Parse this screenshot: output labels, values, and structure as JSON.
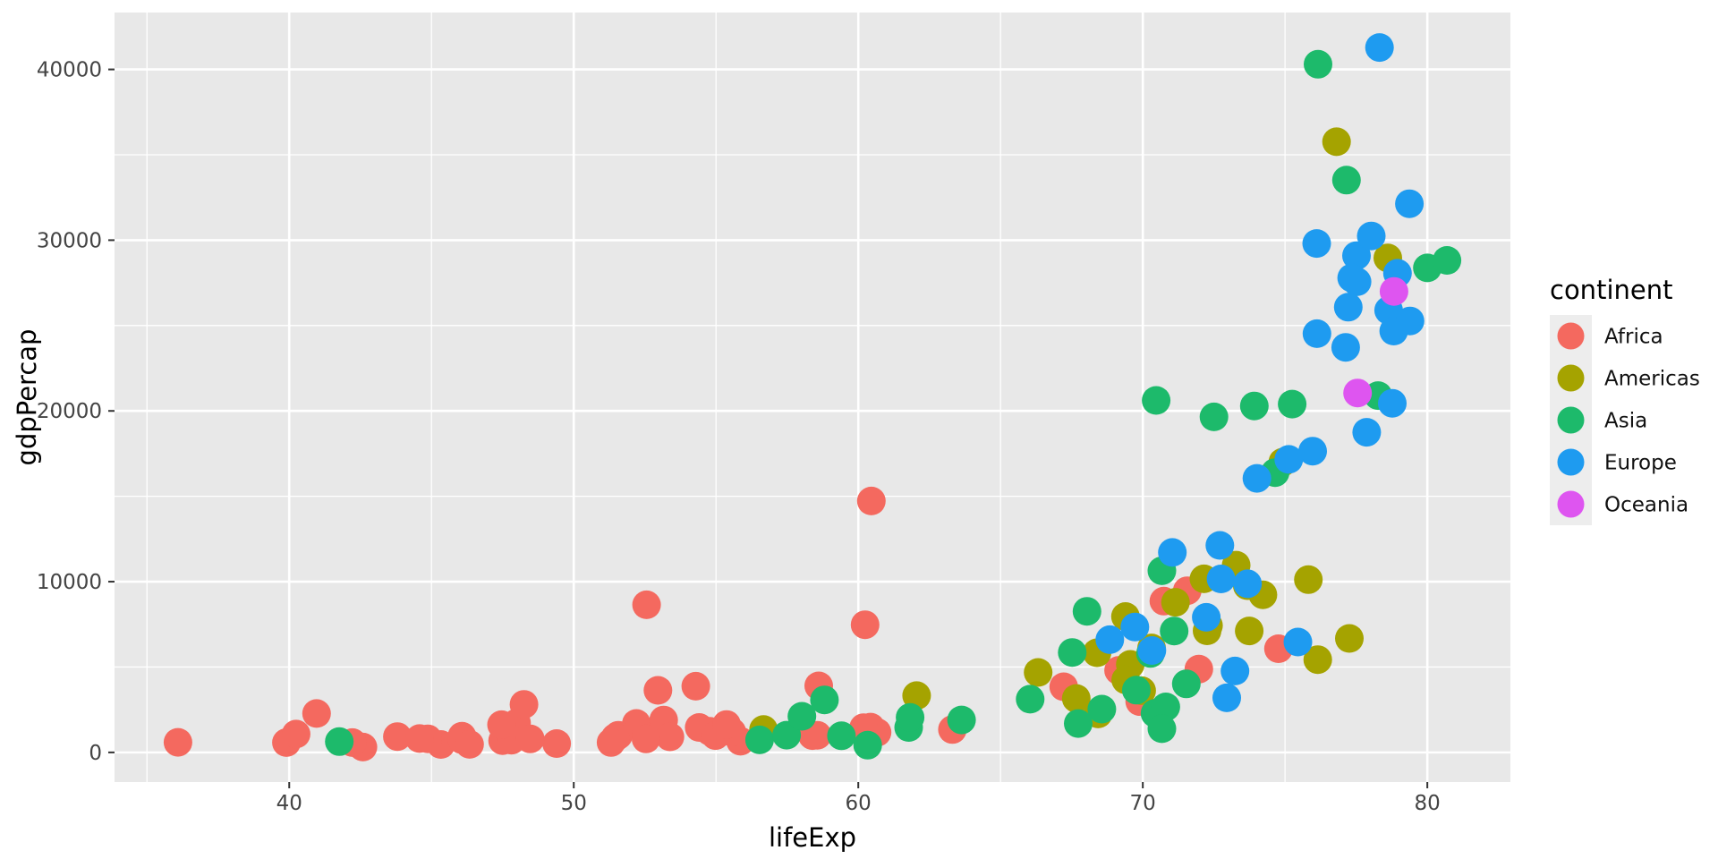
{
  "style": {
    "page_bg": "#FFFFFF",
    "panel_bg": "#E8E8E8",
    "grid_color": "#FFFFFF",
    "tick_mark_color": "#333333",
    "tick_label_color": "#444444",
    "axis_title_color": "#000000",
    "legend_key_bg": "#EDEDED",
    "legend_text_color": "#111111"
  },
  "chart_data": {
    "type": "scatter",
    "title": "",
    "xlabel": "lifeExp",
    "ylabel": "gdpPercap",
    "x_ticks": [
      40,
      50,
      60,
      70,
      80
    ],
    "x_minor_ticks": [
      35,
      45,
      55,
      65,
      75
    ],
    "y_ticks": [
      0,
      10000,
      20000,
      30000,
      40000
    ],
    "y_minor_ticks": [
      5000,
      15000,
      25000,
      35000
    ],
    "xlim": [
      33.86,
      82.92
    ],
    "ylim": [
      -1736,
      43332
    ],
    "grid": true,
    "legend": {
      "title": "continent",
      "position": "right",
      "entries": [
        "Africa",
        "Americas",
        "Asia",
        "Europe",
        "Oceania"
      ]
    },
    "series": [
      {
        "name": "Africa",
        "color": "#F4695F",
        "points": [
          [
            69.15,
            4797
          ],
          [
            40.96,
            2277
          ],
          [
            54.78,
            1233
          ],
          [
            52.56,
            8647
          ],
          [
            46.07,
            946
          ],
          [
            45.33,
            463
          ],
          [
            52.2,
            1694
          ],
          [
            46.07,
            741
          ],
          [
            51.57,
            1005
          ],
          [
            60.66,
            1174
          ],
          [
            42.59,
            312
          ],
          [
            52.96,
            3633
          ],
          [
            47.99,
            1724
          ],
          [
            53.16,
            1895
          ],
          [
            67.22,
            3847
          ],
          [
            48.25,
            2814
          ],
          [
            53.38,
            913
          ],
          [
            49.4,
            516
          ],
          [
            60.46,
            14723
          ],
          [
            55.86,
            654
          ],
          [
            58.56,
            1005
          ],
          [
            51.46,
            869
          ],
          [
            44.87,
            797
          ],
          [
            54.41,
            1459
          ],
          [
            55.56,
            1186
          ],
          [
            42.22,
            576
          ],
          [
            71.56,
            9467
          ],
          [
            54.98,
            986
          ],
          [
            47.5,
            692
          ],
          [
            47.81,
            714
          ],
          [
            60.43,
            1483
          ],
          [
            70.74,
            8862
          ],
          [
            69.89,
            2982
          ],
          [
            46.34,
            472
          ],
          [
            58.61,
            3900
          ],
          [
            51.31,
            580
          ],
          [
            47.46,
            1625
          ],
          [
            74.77,
            6072
          ],
          [
            36.09,
            590
          ],
          [
            63.31,
            1339
          ],
          [
            60.19,
            1450
          ],
          [
            39.9,
            575
          ],
          [
            43.8,
            927
          ],
          [
            60.24,
            7479
          ],
          [
            55.37,
            1632
          ],
          [
            54.29,
            3877
          ],
          [
            48.47,
            789
          ],
          [
            58.39,
            982
          ],
          [
            71.97,
            4877
          ],
          [
            44.58,
            810
          ],
          [
            40.24,
            1071
          ],
          [
            52.54,
            792
          ]
        ]
      },
      {
        "name": "Americas",
        "color": "#A5A300",
        "points": [
          [
            73.28,
            10967
          ],
          [
            62.05,
            3326
          ],
          [
            69.39,
            7958
          ],
          [
            78.61,
            28955
          ],
          [
            75.82,
            10118
          ],
          [
            70.31,
            6117
          ],
          [
            77.26,
            6677
          ],
          [
            76.15,
            5432
          ],
          [
            69.96,
            3614
          ],
          [
            72.31,
            7429
          ],
          [
            69.56,
            5155
          ],
          [
            66.32,
            4684
          ],
          [
            56.67,
            1342
          ],
          [
            67.66,
            3160
          ],
          [
            72.26,
            7122
          ],
          [
            73.67,
            9767
          ],
          [
            68.43,
            2253
          ],
          [
            73.74,
            7114
          ],
          [
            69.4,
            4247
          ],
          [
            68.39,
            5838
          ],
          [
            74.92,
            16999
          ],
          [
            71.15,
            8793
          ],
          [
            76.81,
            35767
          ],
          [
            74.22,
            9230
          ],
          [
            72.15,
            10165
          ]
        ]
      },
      {
        "name": "Asia",
        "color": "#1DBA6B",
        "points": [
          [
            41.76,
            635
          ],
          [
            73.92,
            20292
          ],
          [
            59.41,
            973
          ],
          [
            56.53,
            734
          ],
          [
            70.43,
            2289
          ],
          [
            80.0,
            28378
          ],
          [
            61.77,
            1459
          ],
          [
            66.04,
            3119
          ],
          [
            68.04,
            8264
          ],
          [
            58.81,
            3076
          ],
          [
            78.27,
            20897
          ],
          [
            80.69,
            28817
          ],
          [
            69.77,
            3645
          ],
          [
            67.73,
            1691
          ],
          [
            74.65,
            16386
          ],
          [
            76.16,
            40301
          ],
          [
            70.27,
            5795
          ],
          [
            70.67,
            10638
          ],
          [
            63.63,
            1902
          ],
          [
            60.33,
            424
          ],
          [
            57.48,
            1011
          ],
          [
            72.5,
            19650
          ],
          [
            61.82,
            2049
          ],
          [
            68.56,
            2537
          ],
          [
            70.47,
            20617
          ],
          [
            77.16,
            33519
          ],
          [
            70.81,
            2664
          ],
          [
            71.53,
            4014
          ],
          [
            75.25,
            20400
          ],
          [
            67.52,
            5853
          ],
          [
            70.67,
            1386
          ],
          [
            71.1,
            7111
          ],
          [
            58.02,
            2117
          ]
        ]
      },
      {
        "name": "Europe",
        "color": "#1E9BF0",
        "points": [
          [
            72.95,
            3193
          ],
          [
            77.51,
            29096
          ],
          [
            77.53,
            27561
          ],
          [
            73.24,
            4766
          ],
          [
            70.32,
            5970
          ],
          [
            73.68,
            9876
          ],
          [
            74.01,
            16049
          ],
          [
            76.11,
            29804
          ],
          [
            77.13,
            23724
          ],
          [
            78.64,
            25890
          ],
          [
            77.34,
            27789
          ],
          [
            77.87,
            18748
          ],
          [
            71.04,
            11713
          ],
          [
            78.95,
            28061
          ],
          [
            76.12,
            24522
          ],
          [
            78.82,
            24675
          ],
          [
            75.45,
            6466
          ],
          [
            78.03,
            30246
          ],
          [
            78.32,
            41283
          ],
          [
            72.75,
            10160
          ],
          [
            75.97,
            17641
          ],
          [
            69.72,
            7347
          ],
          [
            72.23,
            7914
          ],
          [
            72.71,
            12126
          ],
          [
            75.13,
            17161
          ],
          [
            78.77,
            20445
          ],
          [
            79.39,
            25267
          ],
          [
            79.37,
            32135
          ],
          [
            68.84,
            6601
          ],
          [
            77.22,
            26075
          ]
        ]
      },
      {
        "name": "Oceania",
        "color": "#DE55F0",
        "points": [
          [
            78.83,
            26998
          ],
          [
            77.55,
            21050
          ]
        ]
      }
    ]
  }
}
